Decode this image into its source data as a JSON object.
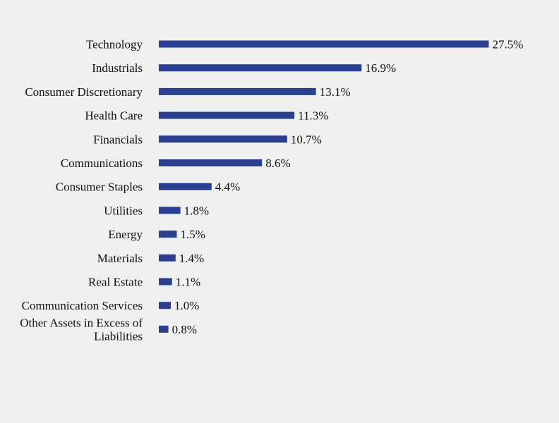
{
  "chart_data": {
    "type": "bar",
    "orientation": "horizontal",
    "categories": [
      "Technology",
      "Industrials",
      "Consumer Discretionary",
      "Health Care",
      "Financials",
      "Communications",
      "Consumer Staples",
      "Utilities",
      "Energy",
      "Materials",
      "Real Estate",
      "Communication Services",
      "Other Assets in Excess of Liabilities"
    ],
    "values": [
      27.5,
      16.9,
      13.1,
      11.3,
      10.7,
      8.6,
      4.4,
      1.8,
      1.5,
      1.4,
      1.1,
      1.0,
      0.8
    ],
    "value_labels": [
      "27.5%",
      "16.9%",
      "13.1%",
      "11.3%",
      "10.7%",
      "8.6%",
      "4.4%",
      "1.8%",
      "1.5%",
      "1.4%",
      "1.1%",
      "1.0%",
      "0.8%"
    ],
    "unit": "%",
    "title": "",
    "xlabel": "",
    "ylabel": "",
    "grid": false,
    "legend": "none",
    "bar_color": "#2a3f8f",
    "background_color": "#f0f0f0"
  }
}
